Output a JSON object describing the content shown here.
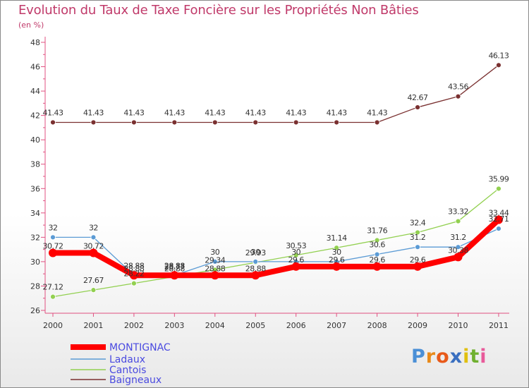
{
  "chart_data": {
    "type": "line",
    "title": "Evolution du Taux de Taxe Foncière sur les Propriétés Non Bâties",
    "subtitle": "(en %)",
    "xlabel": "",
    "ylabel": "",
    "categories": [
      "2000",
      "2001",
      "2002",
      "2003",
      "2004",
      "2005",
      "2006",
      "2007",
      "2008",
      "2009",
      "2010",
      "2011"
    ],
    "ylim": [
      26,
      48
    ],
    "yticks": [
      "26",
      "28",
      "30",
      "32",
      "34",
      "36",
      "38",
      "40",
      "42",
      "44",
      "46",
      "48"
    ],
    "grid": false,
    "legend_position": "bottom-left",
    "series": [
      {
        "name": "MONTIGNAC",
        "color": "#ff0000",
        "values": [
          30.72,
          30.72,
          28.88,
          28.88,
          28.88,
          28.88,
          29.6,
          29.6,
          29.6,
          29.6,
          30.38,
          33.44
        ],
        "labels": [
          "30.72",
          "30.72",
          "28.88",
          "28.88",
          "28.88",
          "28.88",
          "29.6",
          "29.6",
          "29.6",
          "29.6",
          "30.38",
          "33.44"
        ]
      },
      {
        "name": "Ladaux",
        "color": "#5b9bd5",
        "values": [
          32,
          32,
          28.88,
          28.88,
          30,
          30,
          30,
          30,
          30.6,
          31.2,
          31.2,
          32.71
        ],
        "labels": [
          "32",
          "32",
          "28.88",
          "28.88",
          "30",
          "30",
          "30",
          "30",
          "30.6",
          "31.2",
          "31.2",
          "32.71"
        ]
      },
      {
        "name": "Cantois",
        "color": "#92d050",
        "values": [
          27.12,
          27.67,
          28.22,
          28.77,
          29.34,
          29.93,
          30.53,
          31.14,
          31.76,
          32.4,
          33.32,
          35.99
        ],
        "labels": [
          "27.12",
          "27.67",
          "28.22",
          "28.77",
          "29.34",
          "29.93",
          "30.53",
          "31.14",
          "31.76",
          "32.4",
          "33.32",
          "35.99"
        ]
      },
      {
        "name": "Baigneaux",
        "color": "#7a3030",
        "values": [
          41.43,
          41.43,
          41.43,
          41.43,
          41.43,
          41.43,
          41.43,
          41.43,
          41.43,
          42.67,
          43.56,
          46.13
        ],
        "labels": [
          "41.43",
          "41.43",
          "41.43",
          "41.43",
          "41.43",
          "41.43",
          "41.43",
          "41.43",
          "41.43",
          "42.67",
          "43.56",
          "46.13"
        ]
      }
    ]
  },
  "colors": {
    "title": "#c03a6a",
    "axis": "#e05080",
    "label": "#333333"
  },
  "logo": {
    "letters": [
      "P",
      "r",
      "o",
      "x",
      "i",
      "t",
      "i"
    ],
    "colors": [
      "#4a8fd6",
      "#e88a1a",
      "#e85a1a",
      "#3a6fc0",
      "#e0c010",
      "#70b030",
      "#e85a9a"
    ]
  }
}
